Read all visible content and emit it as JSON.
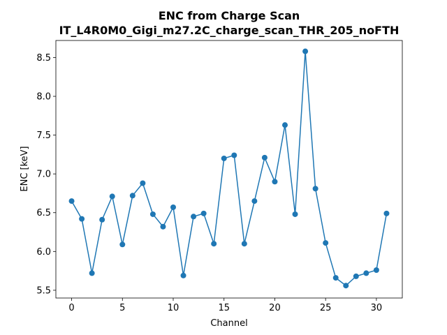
{
  "chart_data": {
    "type": "line",
    "title": "ENC from Charge Scan",
    "subtitle": "IT_L4R0M0_Gigi_m27.2C_charge_scan_THR_205_noFTH",
    "xlabel": "Channel",
    "ylabel": "ENC [keV]",
    "xlim": [
      -1.55,
      32.55
    ],
    "ylim": [
      5.4,
      8.72
    ],
    "xticks": [
      0,
      5,
      10,
      15,
      20,
      25,
      30
    ],
    "xtick_labels": [
      "0",
      "5",
      "10",
      "15",
      "20",
      "25",
      "30"
    ],
    "yticks": [
      5.5,
      6.0,
      6.5,
      7.0,
      7.5,
      8.0,
      8.5
    ],
    "ytick_labels": [
      "5.5",
      "6.0",
      "6.5",
      "7.0",
      "7.5",
      "8.0",
      "8.5"
    ],
    "grid": false,
    "color": "#1f77b4",
    "x": [
      0,
      1,
      2,
      3,
      4,
      5,
      6,
      7,
      8,
      9,
      10,
      11,
      12,
      13,
      14,
      15,
      16,
      17,
      18,
      19,
      20,
      21,
      22,
      23,
      24,
      25,
      26,
      27,
      28,
      29,
      30,
      31
    ],
    "y": [
      6.65,
      6.42,
      5.72,
      6.41,
      6.71,
      6.09,
      6.72,
      6.88,
      6.48,
      6.32,
      6.57,
      5.69,
      6.45,
      6.49,
      6.1,
      7.2,
      7.24,
      6.1,
      6.65,
      7.21,
      6.9,
      7.63,
      6.48,
      8.58,
      6.81,
      6.11,
      5.66,
      5.56,
      5.68,
      5.72,
      5.76,
      6.49
    ]
  }
}
